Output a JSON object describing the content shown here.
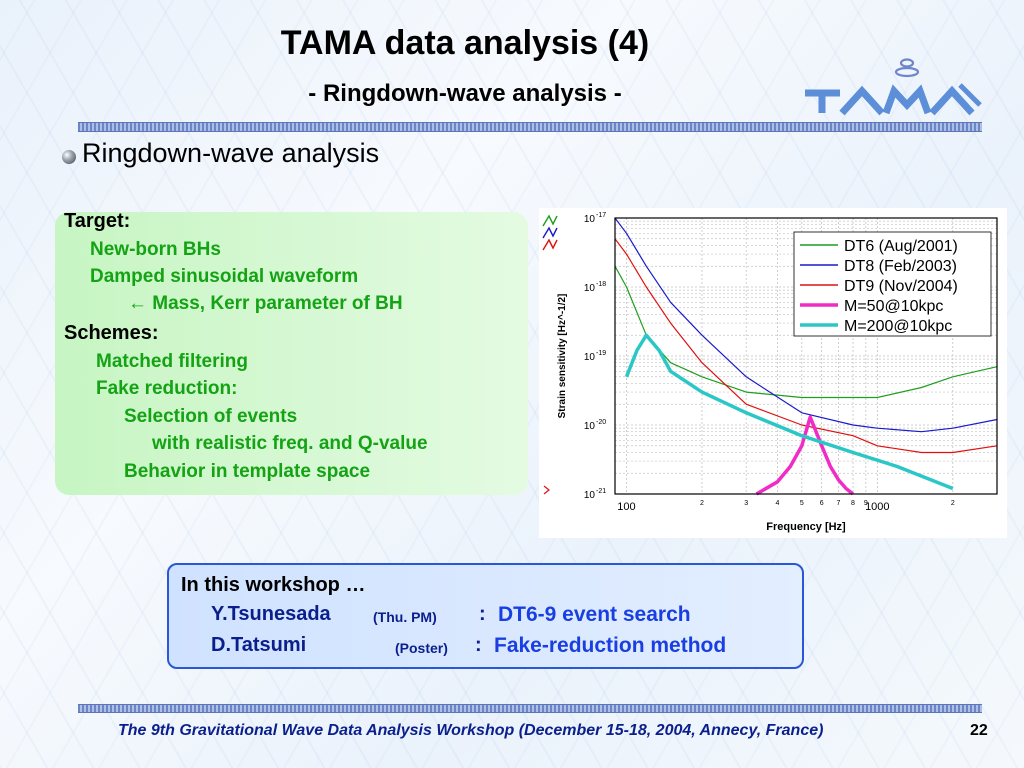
{
  "slide": {
    "title": "TAMA data analysis (4)",
    "subtitle": "- Ringdown-wave analysis -",
    "logo_text": "TAMA",
    "heading": "Ringdown-wave analysis",
    "target_label": "Target:",
    "target_items": [
      "New-born BHs",
      "Damped sinusoidal waveform",
      "← Mass, Kerr parameter of BH"
    ],
    "schemes_label": "Schemes:",
    "schemes_items": [
      "Matched filtering",
      "Fake reduction:",
      "Selection of events",
      "with realistic freq. and Q-value",
      "Behavior in template space"
    ],
    "workshop": {
      "title": "In this workshop …",
      "speaker1": "Y.Tsunesada",
      "speaker1_note": "(Thu. PM)",
      "colon": ":",
      "speaker1_topic": "DT6-9 event search",
      "speaker2": "D.Tatsumi",
      "speaker2_note": "(Poster)",
      "speaker2_topic": "Fake-reduction method"
    },
    "footer": "The 9th Gravitational Wave Data Analysis Workshop  (December 15-18, 2004, Annecy, France)",
    "page_number": "22",
    "colors": {
      "green_text": "#14a314",
      "blue_text": "#1a3fe0",
      "footer_text": "#0b1f8c"
    }
  },
  "chart_data": {
    "type": "line",
    "xlabel": "Frequency [Hz]",
    "ylabel": "Strain sensitivity [Hz^-1/2]",
    "xscale": "log",
    "yscale": "log",
    "xlim": [
      90,
      3000
    ],
    "ylim": [
      1e-21,
      1e-17
    ],
    "x_major_ticks": [
      "100",
      "1000"
    ],
    "x_minor_ticks": [
      "2",
      "3",
      "4",
      "5",
      "6",
      "7",
      "8",
      "9",
      "2"
    ],
    "y_ticks": [
      "10-17",
      "10-18",
      "10-19",
      "10-20",
      "10-21"
    ],
    "legend_position": "top-right",
    "series": [
      {
        "name": "DT6 (Aug/2001)",
        "color": "#1f9e1f",
        "x": [
          90,
          100,
          120,
          150,
          200,
          300,
          500,
          800,
          1000,
          1500,
          2000,
          3000
        ],
        "y": [
          2e-18,
          1e-18,
          2e-19,
          8e-20,
          5e-20,
          3e-20,
          2.5e-20,
          2.5e-20,
          2.5e-20,
          3.5e-20,
          5e-20,
          7e-20
        ]
      },
      {
        "name": "DT8 (Feb/2003)",
        "color": "#1a1acc",
        "x": [
          90,
          100,
          120,
          150,
          200,
          300,
          500,
          800,
          1000,
          1500,
          2000,
          3000
        ],
        "y": [
          1e-17,
          6e-18,
          2e-18,
          6e-19,
          2e-19,
          5e-20,
          1.5e-20,
          1e-20,
          9e-21,
          8e-21,
          9e-21,
          1.2e-20
        ]
      },
      {
        "name": "DT9 (Nov/2004)",
        "color": "#e01010",
        "x": [
          90,
          100,
          120,
          150,
          200,
          300,
          500,
          800,
          1000,
          1500,
          2000,
          3000
        ],
        "y": [
          5e-18,
          3e-18,
          1e-18,
          3e-19,
          8e-20,
          2e-20,
          1e-20,
          7e-21,
          5e-21,
          4e-21,
          4e-21,
          5e-21
        ]
      },
      {
        "name": "M=50@10kpc",
        "color": "#f02bc6",
        "x": [
          330,
          400,
          450,
          500,
          540,
          600,
          650,
          700,
          750,
          800
        ],
        "y": [
          1e-21,
          1.5e-21,
          2.5e-21,
          5e-21,
          1.3e-20,
          5e-21,
          2.5e-21,
          1.6e-21,
          1.2e-21,
          1e-21
        ]
      },
      {
        "name": "M=200@10kpc",
        "color": "#2bc7c7",
        "x": [
          100,
          110,
          120,
          135,
          150,
          200,
          300,
          500,
          800,
          1200,
          2000
        ],
        "y": [
          5e-20,
          1.2e-19,
          2e-19,
          1.2e-19,
          6e-20,
          3e-20,
          1.5e-20,
          7e-21,
          4e-21,
          2.5e-21,
          1.2e-21
        ]
      }
    ]
  }
}
